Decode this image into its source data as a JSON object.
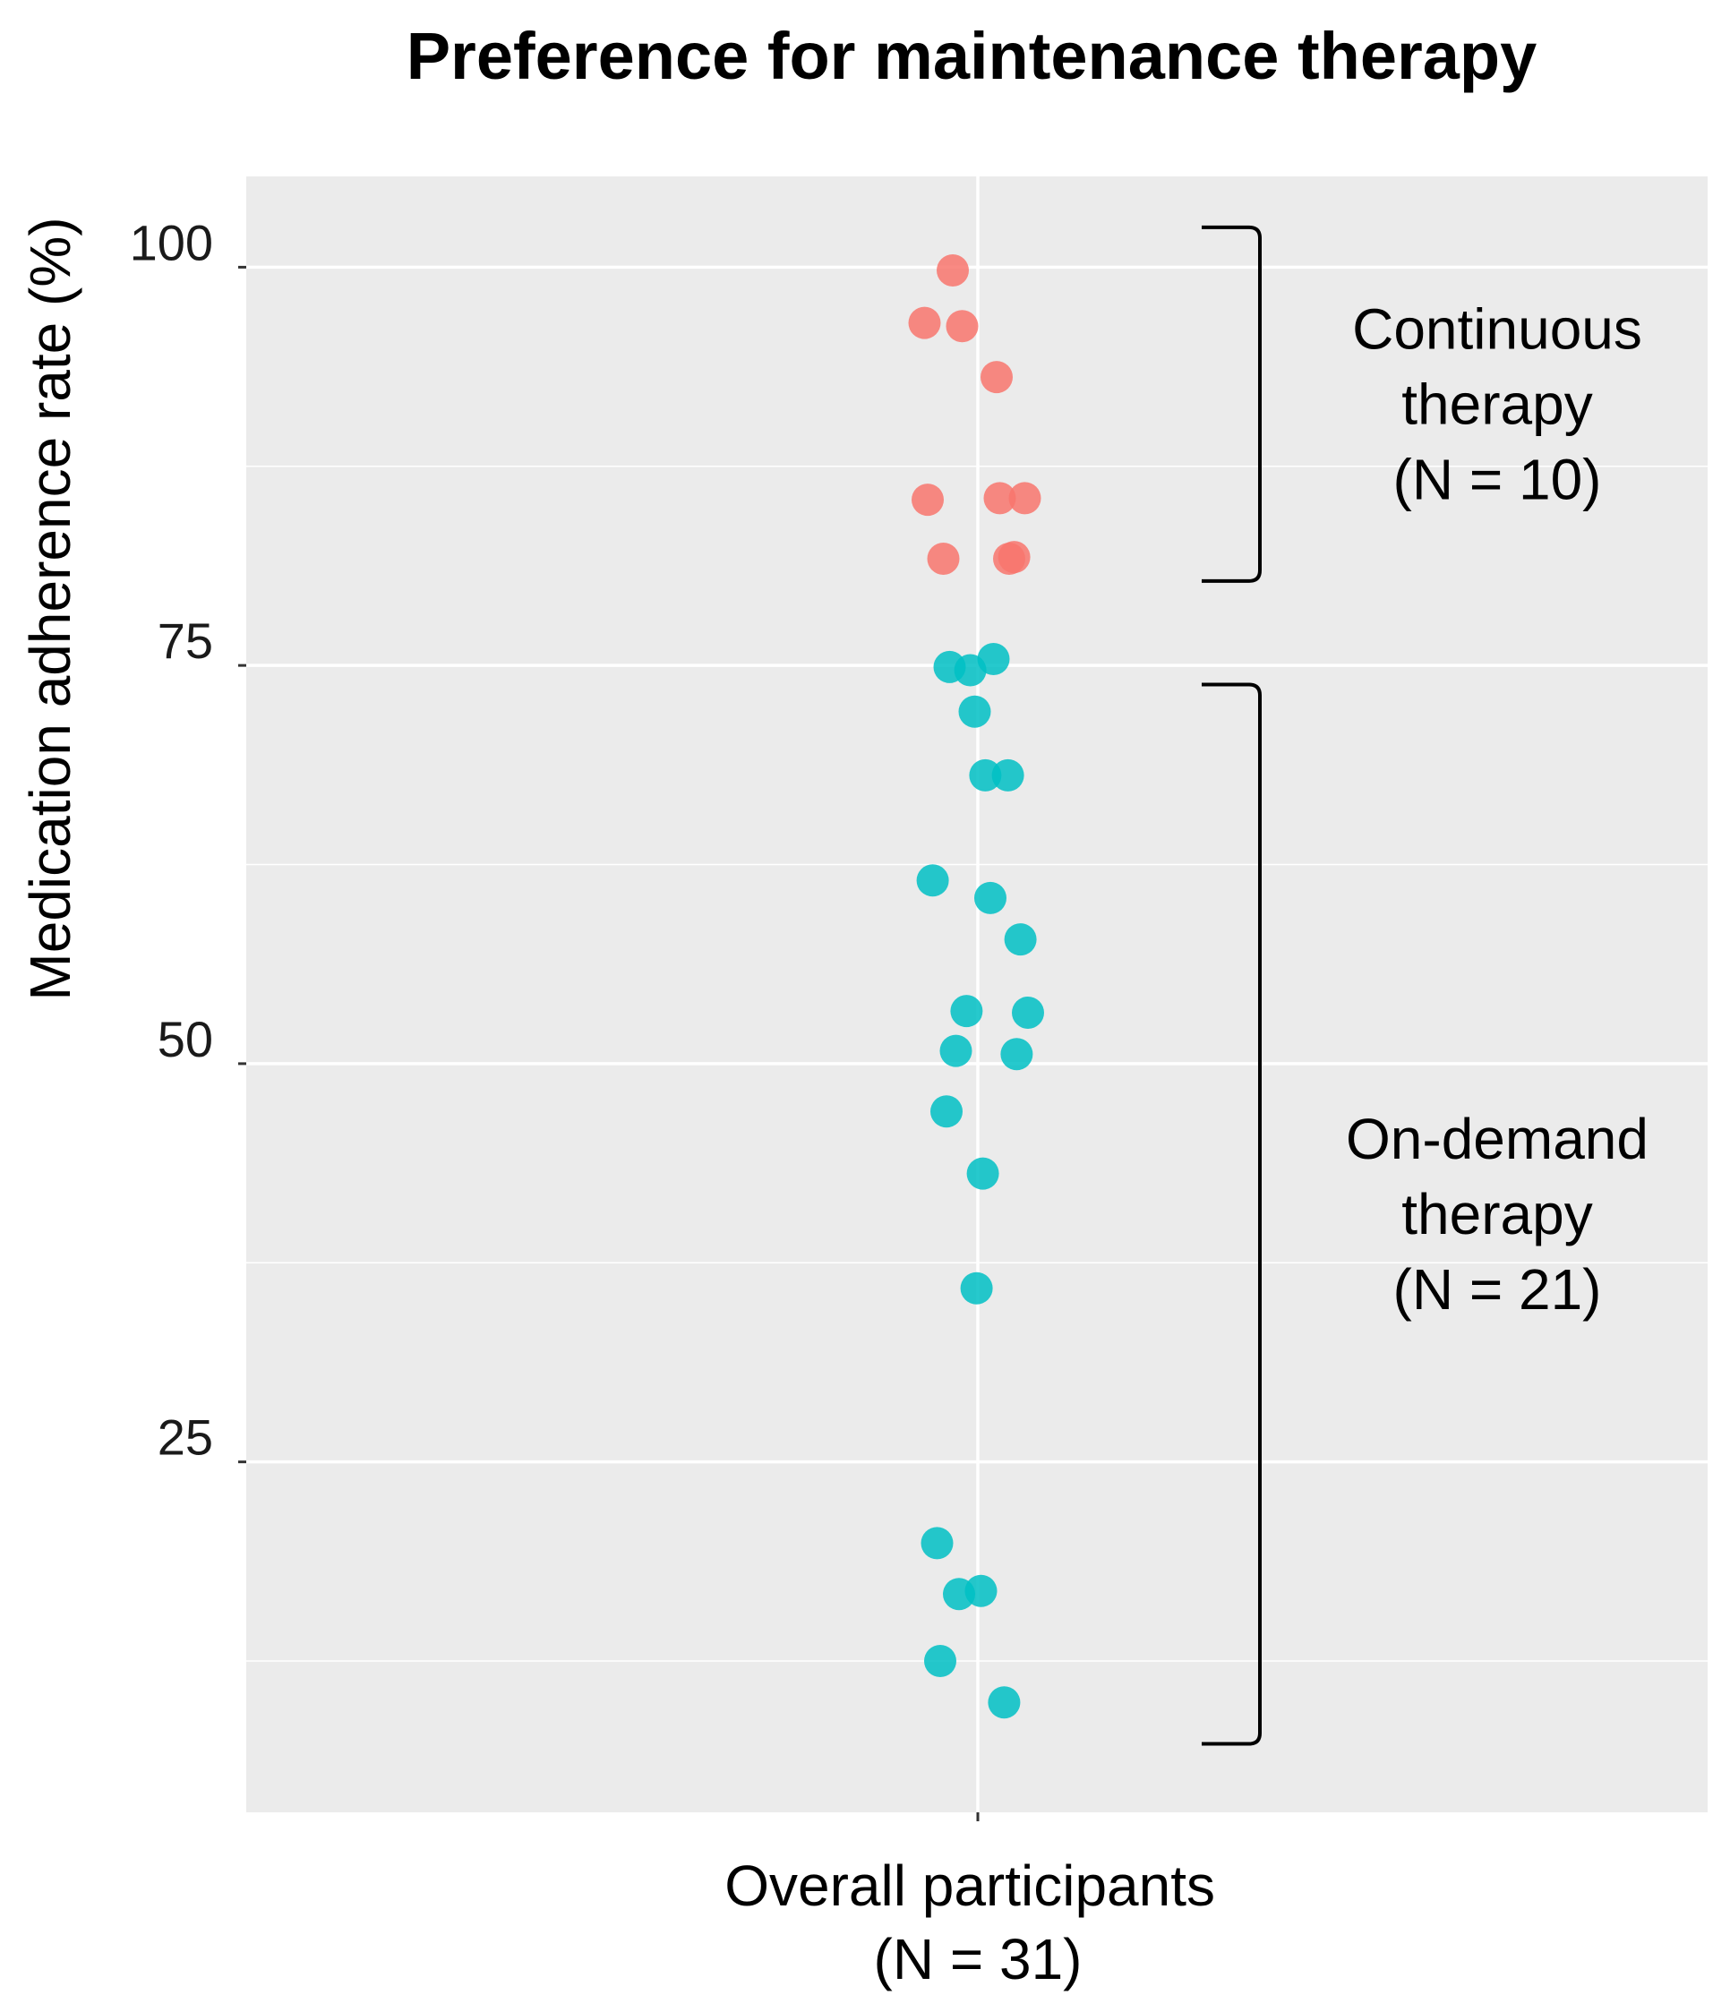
{
  "chart_data": {
    "type": "scatter",
    "title": "Preference for maintenance therapy",
    "ylabel": "Medication adherence rate (%)",
    "xlabel": [
      "Overall participants",
      "(N = 31)"
    ],
    "ylim": [
      3,
      105.7
    ],
    "yticks": [
      25,
      50,
      75,
      100
    ],
    "minor_yticks": [
      12.5,
      37.5,
      62.5,
      87.5
    ],
    "grid": true,
    "series": [
      {
        "name": "Continuous therapy",
        "color": "#F8766D",
        "points": [
          {
            "x": -0.04,
            "y": 99.8
          },
          {
            "x": -0.085,
            "y": 96.5
          },
          {
            "x": -0.025,
            "y": 96.3
          },
          {
            "x": 0.03,
            "y": 93.1
          },
          {
            "x": -0.08,
            "y": 85.4
          },
          {
            "x": 0.035,
            "y": 85.5
          },
          {
            "x": 0.075,
            "y": 85.5
          },
          {
            "x": -0.055,
            "y": 81.7
          },
          {
            "x": 0.05,
            "y": 81.7
          },
          {
            "x": 0.058,
            "y": 81.8
          }
        ]
      },
      {
        "name": "On-demand therapy",
        "color": "#00BFC4",
        "points": [
          {
            "x": -0.045,
            "y": 74.9
          },
          {
            "x": -0.012,
            "y": 74.7
          },
          {
            "x": 0.025,
            "y": 75.4
          },
          {
            "x": -0.005,
            "y": 72.1
          },
          {
            "x": 0.012,
            "y": 68.1
          },
          {
            "x": 0.048,
            "y": 68.1
          },
          {
            "x": -0.072,
            "y": 61.5
          },
          {
            "x": 0.02,
            "y": 60.4
          },
          {
            "x": 0.068,
            "y": 57.8
          },
          {
            "x": -0.018,
            "y": 53.3
          },
          {
            "x": 0.08,
            "y": 53.2
          },
          {
            "x": -0.035,
            "y": 50.8
          },
          {
            "x": 0.062,
            "y": 50.6
          },
          {
            "x": -0.05,
            "y": 47.0
          },
          {
            "x": 0.008,
            "y": 43.1
          },
          {
            "x": -0.002,
            "y": 35.9
          },
          {
            "x": -0.065,
            "y": 19.9
          },
          {
            "x": -0.03,
            "y": 16.7
          },
          {
            "x": 0.005,
            "y": 16.9
          },
          {
            "x": -0.06,
            "y": 12.5
          },
          {
            "x": 0.042,
            "y": 9.9
          }
        ]
      }
    ],
    "annotations": [
      {
        "group": "Continuous therapy",
        "y_range": [
          80.3,
          102.5
        ],
        "lines": [
          "Continuous",
          "therapy",
          "(N = 10)"
        ]
      },
      {
        "group": "On-demand therapy",
        "y_range": [
          7.3,
          73.8
        ],
        "lines": [
          "On-demand",
          "therapy",
          "(N = 21)"
        ]
      }
    ]
  }
}
